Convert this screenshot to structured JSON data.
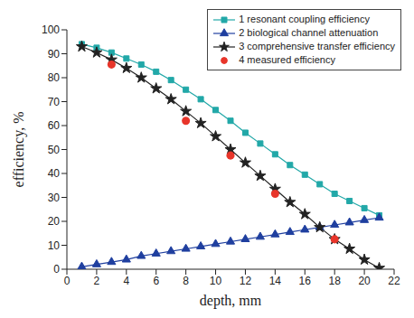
{
  "chart_data": {
    "type": "line",
    "x_label": "depth, mm",
    "y_label": "efficiency, %",
    "xlim": [
      0,
      22
    ],
    "xticks": [
      0,
      2,
      4,
      6,
      8,
      10,
      12,
      14,
      16,
      18,
      20,
      22
    ],
    "ylim": [
      0,
      100
    ],
    "yticks": [
      0,
      10,
      20,
      30,
      40,
      50,
      60,
      70,
      80,
      90,
      100
    ],
    "grid": false,
    "legend": "upper right",
    "series": [
      {
        "name": "1 resonant coupling efficiency",
        "color": "#22a8a8",
        "marker": "square",
        "line_style": "solid",
        "x": [
          1,
          2,
          3,
          4,
          5,
          6,
          7,
          8,
          9,
          10,
          11,
          12,
          13,
          14,
          15,
          16,
          17,
          18,
          19,
          20,
          21
        ],
        "values": [
          94,
          92.5,
          90.5,
          88,
          85.5,
          82.5,
          79,
          75,
          71,
          66.5,
          62,
          57,
          52.5,
          48,
          43.5,
          39.5,
          35.5,
          31.5,
          28.5,
          25.5,
          22.5
        ]
      },
      {
        "name": "2 biological channel attenuation",
        "color": "#1f3f9f",
        "marker": "triangle",
        "line_style": "solid",
        "x": [
          1,
          2,
          3,
          4,
          5,
          6,
          7,
          8,
          9,
          10,
          11,
          12,
          13,
          14,
          15,
          16,
          17,
          18,
          19,
          20,
          21
        ],
        "values": [
          1,
          2,
          3,
          4,
          5.5,
          6.5,
          7.5,
          8.5,
          9.5,
          10.5,
          11.5,
          12.5,
          13.5,
          14.5,
          15.5,
          16.5,
          17.5,
          18.5,
          19.5,
          20.5,
          21.5
        ]
      },
      {
        "name": "3 comprehensive transfer efficiency",
        "color": "#222222",
        "marker": "star",
        "line_style": "solid",
        "x": [
          1,
          2,
          3,
          4,
          5,
          6,
          7,
          8,
          9,
          10,
          11,
          12,
          13,
          14,
          15,
          16,
          17,
          18,
          19,
          20,
          21
        ],
        "values": [
          93,
          90.5,
          87.5,
          84,
          80,
          75.5,
          71,
          66,
          61,
          55.5,
          50,
          44.5,
          39,
          33.5,
          28,
          23,
          17.5,
          12.5,
          8.5,
          4,
          0.5
        ]
      },
      {
        "name": "4 measured efficiency",
        "color": "#e8352a",
        "marker": "circle",
        "type": "scatter",
        "x": [
          3,
          8,
          11,
          14,
          18
        ],
        "values": [
          85.5,
          62,
          47.5,
          31.5,
          12.5
        ]
      }
    ]
  }
}
